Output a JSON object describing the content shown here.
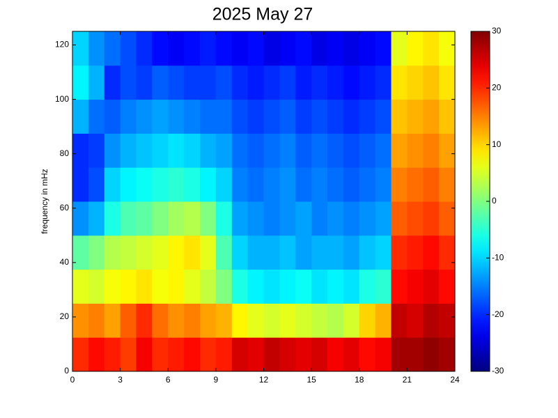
{
  "chart_data": {
    "type": "heatmap",
    "title": "2025 May 27",
    "y_label": "frequency in mHz",
    "colormap": "jet",
    "xlim": [
      0,
      24
    ],
    "xticks": [
      0,
      3,
      6,
      9,
      12,
      15,
      18,
      21,
      24
    ],
    "ylim": [
      0,
      125
    ],
    "yticks": [
      0,
      20,
      40,
      60,
      80,
      100,
      120
    ],
    "x_bins": [
      0,
      1,
      2,
      3,
      4,
      5,
      6,
      7,
      8,
      9,
      10,
      11,
      12,
      13,
      14,
      15,
      16,
      17,
      18,
      19,
      20,
      21,
      22,
      23,
      24
    ],
    "y_bins": [
      0,
      12.5,
      25,
      37.5,
      50,
      62.5,
      75,
      87.5,
      100,
      112.5,
      125
    ],
    "values": [
      [
        20,
        22,
        21,
        19,
        23,
        20,
        21,
        22,
        20,
        21,
        25,
        24,
        26,
        25,
        24,
        25,
        23,
        24,
        22,
        23,
        28,
        28,
        29,
        28
      ],
      [
        14,
        15,
        13,
        17,
        20,
        16,
        14,
        15,
        13,
        12,
        8,
        6,
        5,
        6,
        5,
        4,
        3,
        5,
        10,
        12,
        26,
        25,
        27,
        26
      ],
      [
        6,
        5,
        7,
        8,
        9,
        7,
        8,
        6,
        4,
        0,
        -6,
        -8,
        -9,
        -8,
        -7,
        -9,
        -8,
        -9,
        -6,
        -5,
        22,
        23,
        24,
        22
      ],
      [
        -2,
        0,
        3,
        4,
        5,
        6,
        8,
        9,
        6,
        -3,
        -10,
        -12,
        -12,
        -11,
        -13,
        -12,
        -12,
        -13,
        -11,
        -10,
        20,
        21,
        22,
        20
      ],
      [
        -14,
        -12,
        -6,
        -3,
        -2,
        0,
        2,
        3,
        0,
        -6,
        -13,
        -14,
        -15,
        -14,
        -13,
        -15,
        -14,
        -15,
        -14,
        -13,
        17,
        18,
        19,
        17
      ],
      [
        -20,
        -18,
        -10,
        -8,
        -7,
        -6,
        -5,
        -6,
        -8,
        -10,
        -15,
        -16,
        -15,
        -14,
        -16,
        -15,
        -16,
        -17,
        -16,
        -15,
        15,
        16,
        17,
        15
      ],
      [
        -20,
        -19,
        -14,
        -12,
        -11,
        -10,
        -9,
        -10,
        -12,
        -13,
        -16,
        -17,
        -16,
        -15,
        -17,
        -16,
        -17,
        -18,
        -17,
        -16,
        13,
        14,
        15,
        13
      ],
      [
        -12,
        -16,
        -17,
        -15,
        -14,
        -13,
        -14,
        -15,
        -16,
        -16,
        -18,
        -19,
        -18,
        -17,
        -19,
        -18,
        -19,
        -20,
        -19,
        -18,
        11,
        12,
        13,
        11
      ],
      [
        -8,
        -12,
        -20,
        -18,
        -19,
        -17,
        -18,
        -19,
        -19,
        -18,
        -20,
        -21,
        -20,
        -19,
        -21,
        -20,
        -21,
        -22,
        -21,
        -20,
        9,
        10,
        11,
        9
      ],
      [
        -10,
        -14,
        -16,
        -18,
        -20,
        -22,
        -23,
        -22,
        -21,
        -22,
        -23,
        -22,
        -24,
        -23,
        -22,
        -24,
        -23,
        -24,
        -23,
        -22,
        6,
        8,
        9,
        7
      ]
    ],
    "colorbar": {
      "lim": [
        -30,
        30
      ],
      "ticks": [
        -30,
        -20,
        -10,
        0,
        10,
        20,
        30
      ]
    }
  }
}
